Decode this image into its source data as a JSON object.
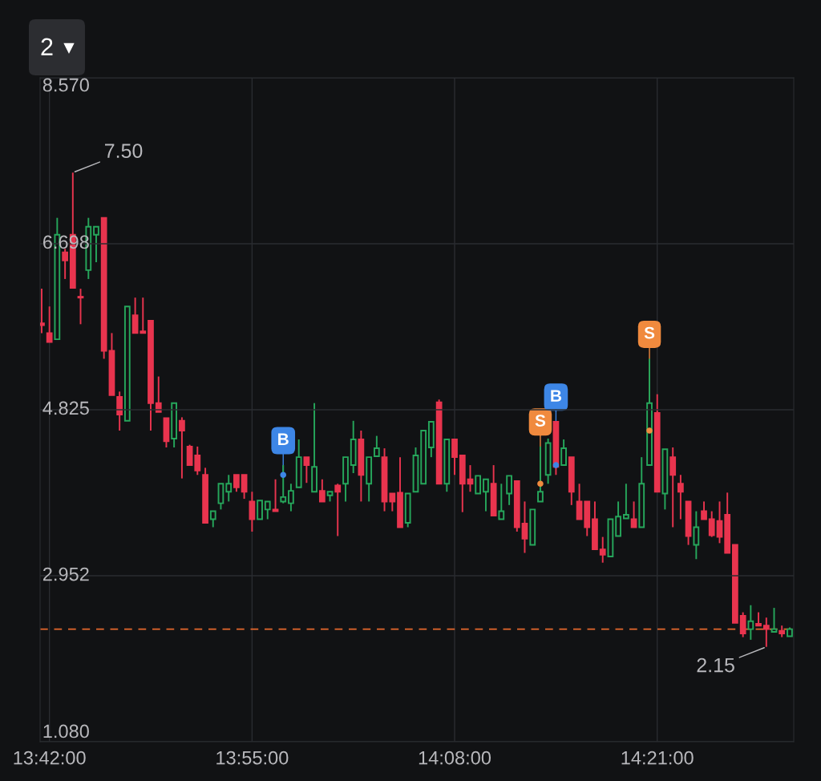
{
  "chart_data": {
    "type": "candlestick",
    "x": [
      13.6917,
      13.7,
      13.7083,
      13.7167,
      13.725,
      13.7333,
      13.7417,
      13.75,
      13.7583,
      13.7667,
      13.775,
      13.7833,
      13.7917,
      13.8,
      13.8083,
      13.8167,
      13.825,
      13.8333,
      13.8417,
      13.85,
      13.8583,
      13.8667,
      13.875,
      13.8833,
      13.8917,
      13.9,
      13.9083,
      13.9167,
      13.925,
      13.9333,
      13.9417,
      13.95,
      13.9583,
      13.9667,
      13.975,
      13.9833,
      13.9917,
      14.0,
      14.0083,
      14.0167,
      14.025,
      14.0333,
      14.0417,
      14.05,
      14.0583,
      14.0667,
      14.075,
      14.0833,
      14.0917,
      14.1,
      14.1083,
      14.1167,
      14.125,
      14.1333,
      14.1417,
      14.15,
      14.1583,
      14.1667,
      14.175,
      14.1833,
      14.1917,
      14.2,
      14.2083,
      14.2167,
      14.225,
      14.2333,
      14.2417,
      14.25,
      14.2583,
      14.2667,
      14.275,
      14.2833,
      14.2917,
      14.3,
      14.3083,
      14.3167,
      14.325,
      14.3333,
      14.3417,
      14.35,
      14.3583,
      14.3667,
      14.375,
      14.3833,
      14.3917,
      14.4,
      14.4083,
      14.4167,
      14.425,
      14.4333,
      14.4417,
      14.45,
      14.4583,
      14.4667,
      14.475,
      14.4833,
      14.4917
    ],
    "ohlc": [
      [
        5.8,
        6.19,
        5.69,
        5.78
      ],
      [
        5.69,
        5.99,
        5.59,
        5.59
      ],
      [
        5.62,
        6.99,
        5.62,
        6.8
      ],
      [
        6.6,
        6.64,
        6.3,
        6.51
      ],
      [
        6.8,
        7.5,
        6.2,
        6.2
      ],
      [
        6.1,
        6.19,
        5.79,
        6.09
      ],
      [
        6.4,
        6.99,
        6.3,
        6.89
      ],
      [
        6.8,
        6.89,
        6.49,
        6.89
      ],
      [
        6.99,
        6.99,
        5.4,
        5.49
      ],
      [
        5.49,
        5.69,
        4.99,
        4.99
      ],
      [
        4.97,
        5.03,
        4.59,
        4.77
      ],
      [
        4.7,
        5.99,
        4.7,
        5.99
      ],
      [
        5.89,
        6.09,
        5.69,
        5.69
      ],
      [
        5.71,
        6.09,
        5.69,
        5.69
      ],
      [
        5.83,
        5.83,
        4.59,
        4.9
      ],
      [
        4.9,
        5.2,
        4.8,
        4.8
      ],
      [
        4.73,
        4.73,
        4.4,
        4.47
      ],
      [
        4.5,
        4.9,
        4.4,
        4.9
      ],
      [
        4.7,
        4.74,
        4.05,
        4.59
      ],
      [
        4.41,
        4.43,
        4.2,
        4.2
      ],
      [
        4.31,
        4.41,
        4.09,
        4.14
      ],
      [
        4.09,
        4.17,
        3.55,
        3.55
      ],
      [
        3.59,
        3.68,
        3.5,
        3.68
      ],
      [
        3.77,
        3.99,
        3.7,
        3.99
      ],
      [
        3.9,
        4.09,
        3.79,
        3.99
      ],
      [
        4.09,
        4.09,
        3.9,
        3.95
      ],
      [
        4.09,
        4.09,
        3.82,
        3.9
      ],
      [
        3.79,
        3.9,
        3.45,
        3.59
      ],
      [
        3.59,
        3.8,
        3.59,
        3.8
      ],
      [
        3.7,
        3.79,
        3.59,
        3.79
      ],
      [
        3.7,
        4.04,
        3.68,
        3.68
      ],
      [
        3.79,
        4.2,
        3.77,
        3.84
      ],
      [
        3.77,
        3.99,
        3.68,
        3.91
      ],
      [
        3.95,
        4.49,
        3.95,
        4.29
      ],
      [
        4.29,
        4.29,
        4.0,
        4.2
      ],
      [
        3.9,
        4.9,
        3.9,
        4.18
      ],
      [
        3.91,
        4.04,
        3.79,
        3.79
      ],
      [
        3.86,
        3.9,
        3.79,
        3.9
      ],
      [
        3.97,
        3.99,
        3.4,
        3.9
      ],
      [
        3.99,
        4.29,
        3.79,
        4.29
      ],
      [
        4.2,
        4.7,
        4.11,
        4.49
      ],
      [
        4.49,
        4.59,
        3.79,
        4.09
      ],
      [
        3.99,
        4.29,
        3.79,
        4.29
      ],
      [
        4.3,
        4.53,
        4.3,
        4.39
      ],
      [
        4.29,
        4.39,
        3.68,
        3.79
      ],
      [
        3.88,
        3.88,
        3.68,
        3.79
      ],
      [
        3.89,
        4.29,
        3.5,
        3.5
      ],
      [
        3.55,
        3.88,
        3.5,
        3.88
      ],
      [
        3.9,
        4.4,
        3.9,
        4.31
      ],
      [
        3.99,
        4.59,
        3.99,
        4.59
      ],
      [
        4.4,
        4.69,
        4.29,
        4.69
      ],
      [
        4.91,
        4.94,
        3.99,
        3.99
      ],
      [
        3.99,
        4.49,
        3.9,
        4.49
      ],
      [
        4.49,
        4.49,
        4.09,
        4.29
      ],
      [
        4.31,
        4.31,
        3.67,
        3.99
      ],
      [
        4.04,
        4.2,
        3.9,
        3.99
      ],
      [
        3.88,
        4.08,
        3.88,
        4.08
      ],
      [
        3.9,
        4.04,
        3.68,
        4.04
      ],
      [
        3.99,
        4.2,
        3.63,
        3.63
      ],
      [
        3.59,
        3.99,
        3.59,
        3.68
      ],
      [
        3.88,
        4.08,
        3.75,
        4.08
      ],
      [
        4.02,
        4.02,
        3.45,
        3.5
      ],
      [
        3.54,
        3.79,
        3.21,
        3.37
      ],
      [
        3.3,
        3.7,
        3.3,
        3.7
      ],
      [
        3.79,
        4.41,
        3.79,
        3.9
      ],
      [
        4.09,
        4.5,
        3.99,
        4.45
      ],
      [
        4.69,
        4.69,
        4.09,
        4.18
      ],
      [
        4.2,
        4.49,
        4.2,
        4.39
      ],
      [
        4.29,
        4.29,
        3.75,
        3.9
      ],
      [
        3.79,
        3.99,
        3.59,
        3.59
      ],
      [
        3.79,
        3.79,
        3.4,
        3.5
      ],
      [
        3.59,
        3.79,
        3.25,
        3.25
      ],
      [
        3.25,
        3.39,
        3.1,
        3.19
      ],
      [
        3.17,
        3.59,
        3.17,
        3.59
      ],
      [
        3.4,
        3.79,
        3.4,
        3.62
      ],
      [
        3.6,
        3.99,
        3.6,
        3.64
      ],
      [
        3.59,
        3.79,
        3.5,
        3.5
      ],
      [
        3.5,
        4.29,
        3.5,
        3.99
      ],
      [
        4.2,
        5.4,
        4.2,
        4.9
      ],
      [
        4.79,
        5.0,
        3.9,
        3.9
      ],
      [
        3.88,
        4.38,
        3.7,
        4.38
      ],
      [
        4.29,
        4.4,
        3.5,
        4.09
      ],
      [
        3.99,
        4.09,
        3.59,
        3.9
      ],
      [
        3.79,
        3.79,
        3.3,
        3.4
      ],
      [
        3.3,
        3.68,
        3.14,
        3.5
      ],
      [
        3.68,
        3.79,
        3.59,
        3.59
      ],
      [
        3.59,
        3.68,
        3.39,
        3.41
      ],
      [
        3.57,
        3.79,
        3.32,
        3.39
      ],
      [
        3.64,
        3.89,
        3.21,
        3.21
      ],
      [
        3.3,
        3.3,
        2.42,
        2.42
      ],
      [
        2.5,
        2.54,
        2.26,
        2.3
      ],
      [
        2.35,
        2.62,
        2.23,
        2.44
      ],
      [
        2.41,
        2.54,
        2.39,
        2.39
      ],
      [
        2.39,
        2.48,
        2.15,
        2.35
      ],
      [
        2.32,
        2.59,
        2.32,
        2.35
      ],
      [
        2.33,
        2.39,
        2.26,
        2.3
      ],
      [
        2.27,
        2.37,
        2.27,
        2.35
      ]
    ],
    "colors": [
      "#e8344e",
      "#e8344e",
      "#26a65b",
      "#e8344e",
      "#e8344e",
      "#e8344e",
      "#26a65b",
      "#26a65b",
      "#e8344e",
      "#e8344e",
      "#e8344e",
      "#26a65b",
      "#e8344e",
      "#e8344e",
      "#e8344e",
      "#e8344e",
      "#e8344e",
      "#26a65b",
      "#e8344e",
      "#e8344e",
      "#e8344e",
      "#e8344e",
      "#26a65b",
      "#26a65b",
      "#26a65b",
      "#e8344e",
      "#e8344e",
      "#e8344e",
      "#26a65b",
      "#26a65b",
      "#e8344e",
      "#26a65b",
      "#26a65b",
      "#26a65b",
      "#e8344e",
      "#26a65b",
      "#e8344e",
      "#26a65b",
      "#e8344e",
      "#26a65b",
      "#26a65b",
      "#e8344e",
      "#26a65b",
      "#26a65b",
      "#e8344e",
      "#e8344e",
      "#e8344e",
      "#26a65b",
      "#26a65b",
      "#26a65b",
      "#26a65b",
      "#e8344e",
      "#26a65b",
      "#e8344e",
      "#e8344e",
      "#e8344e",
      "#26a65b",
      "#26a65b",
      "#e8344e",
      "#26a65b",
      "#26a65b",
      "#e8344e",
      "#e8344e",
      "#26a65b",
      "#26a65b",
      "#26a65b",
      "#e8344e",
      "#26a65b",
      "#e8344e",
      "#e8344e",
      "#e8344e",
      "#e8344e",
      "#e8344e",
      "#26a65b",
      "#26a65b",
      "#26a65b",
      "#e8344e",
      "#26a65b",
      "#26a65b",
      "#e8344e",
      "#26a65b",
      "#e8344e",
      "#e8344e",
      "#e8344e",
      "#26a65b",
      "#e8344e",
      "#e8344e",
      "#e8344e",
      "#e8344e",
      "#e8344e",
      "#e8344e",
      "#26a65b",
      "#e8344e",
      "#e8344e",
      "#26a65b",
      "#e8344e",
      "#26a65b"
    ],
    "series": [
      {
        "type": "scatter",
        "x": [
          13.95,
          14.225,
          14.2417,
          14.3417
        ],
        "values": [
          4.09,
          3.99,
          4.2,
          4.59
        ],
        "colors": [
          "#3d86e6",
          "#f08a3e",
          "#3d86e6",
          "#f08a3e"
        ]
      }
    ],
    "xlim": [
      13.69,
      14.496
    ],
    "xticks": [
      {
        "value": 13.7,
        "label": "13:42:00"
      },
      {
        "value": 13.9167,
        "label": "13:55:00"
      },
      {
        "value": 14.1333,
        "label": "14:08:00"
      },
      {
        "value": 14.35,
        "label": "14:21:00"
      }
    ],
    "ylim": [
      1.08,
      8.57
    ],
    "yticks": [
      {
        "value": 1.08,
        "label": "1.080"
      },
      {
        "value": 2.952,
        "label": "2.952"
      },
      {
        "value": 4.825,
        "label": "4.825"
      },
      {
        "value": 6.698,
        "label": "6.698"
      },
      {
        "value": 8.57,
        "label": "8.570"
      }
    ],
    "grid": true,
    "ref_lines": [
      {
        "axis": "y",
        "value": 2.35,
        "color": "#e8692c",
        "line_style": "dashed"
      }
    ],
    "annotations": [
      "2",
      {
        "text": "7.50",
        "x": 13.725,
        "y": 7.5
      },
      {
        "text": "2.15",
        "x": 14.4667,
        "y": 2.15
      },
      {
        "text": "B",
        "x": 13.95,
        "y": 4.09
      },
      {
        "text": "S",
        "x": 14.225,
        "y": 3.99
      },
      {
        "text": "B",
        "x": 14.2417,
        "y": 4.2
      },
      {
        "text": "S",
        "x": 14.3417,
        "y": 4.59
      }
    ]
  }
}
